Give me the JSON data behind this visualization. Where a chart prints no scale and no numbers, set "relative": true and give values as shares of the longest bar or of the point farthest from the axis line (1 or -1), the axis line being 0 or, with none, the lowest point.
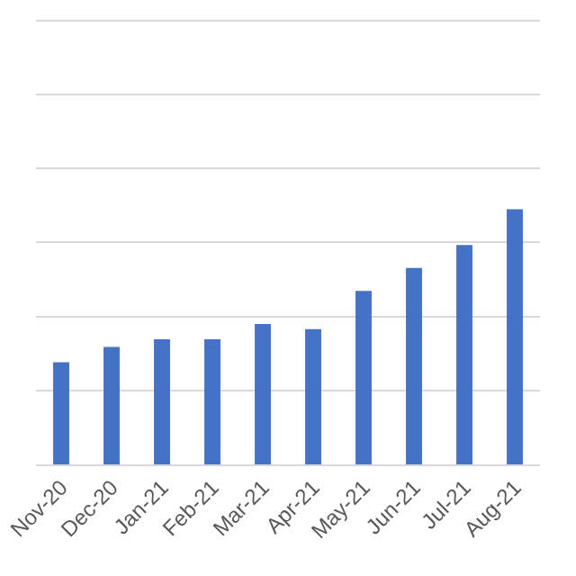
{
  "chart_data": {
    "type": "bar",
    "relative": true,
    "categories": [
      "Nov-20",
      "Dec-20",
      "Jan-21",
      "Feb-21",
      "Mar-21",
      "Apr-21",
      "May-21",
      "Jun-21",
      "Jul-21",
      "Aug-21"
    ],
    "values": [
      0.4,
      0.46,
      0.49,
      0.49,
      0.55,
      0.53,
      0.68,
      0.77,
      0.86,
      1
    ],
    "color": "#4472c4",
    "grid": "y"
  }
}
